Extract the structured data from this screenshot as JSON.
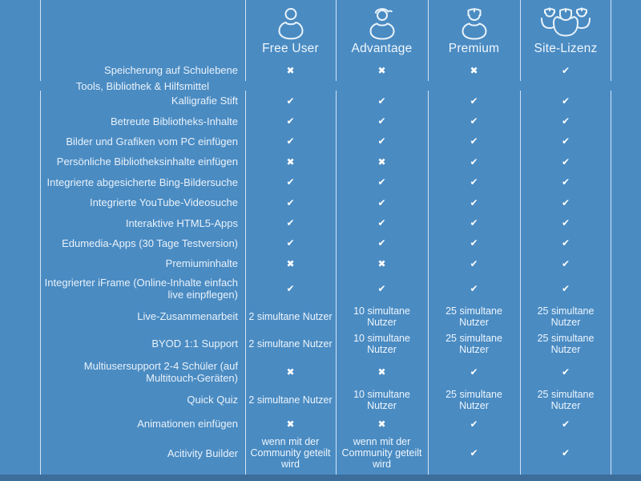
{
  "colors": {
    "background": "#4a8bc2",
    "footer_strip": "#3c6d9b",
    "divider_line": "#f0f8ff",
    "text": "#e9f2fa"
  },
  "glyphs": {
    "yes": "✔",
    "no": "✖"
  },
  "header": {
    "plans": [
      {
        "label": "Free User",
        "icon": "free-user-icon"
      },
      {
        "label": "Advantage",
        "icon": "advantage-user-icon"
      },
      {
        "label": "Premium",
        "icon": "premium-user-icon"
      },
      {
        "label": "Site-Lizenz",
        "icon": "site-license-group-icon"
      }
    ]
  },
  "rows": [
    {
      "type": "feature",
      "placement": "header",
      "label": "Speicherung auf Schulebene",
      "values": [
        "no",
        "no",
        "no",
        "yes"
      ]
    },
    {
      "type": "section-title",
      "label": "Tools, Bibliothek & Hilfsmittel"
    },
    {
      "type": "feature",
      "label": "Kalligrafie Stift",
      "values": [
        "yes",
        "yes",
        "yes",
        "yes"
      ]
    },
    {
      "type": "feature",
      "label": "Betreute Bibliotheks-Inhalte",
      "values": [
        "yes",
        "yes",
        "yes",
        "yes"
      ]
    },
    {
      "type": "feature",
      "label": "Bilder und Grafiken vom PC einfügen",
      "values": [
        "yes",
        "yes",
        "yes",
        "yes"
      ]
    },
    {
      "type": "feature",
      "label": "Persönliche Bibliotheksinhalte einfügen",
      "values": [
        "no",
        "no",
        "yes",
        "yes"
      ]
    },
    {
      "type": "feature",
      "label": "Integrierte abgesicherte Bing-Bildersuche",
      "values": [
        "yes",
        "yes",
        "yes",
        "yes"
      ]
    },
    {
      "type": "feature",
      "label": "Integrierte YouTube-Videosuche",
      "values": [
        "yes",
        "yes",
        "yes",
        "yes"
      ]
    },
    {
      "type": "feature",
      "label": "Interaktive HTML5-Apps",
      "values": [
        "yes",
        "yes",
        "yes",
        "yes"
      ]
    },
    {
      "type": "feature",
      "label": "Edumedia-Apps (30 Tage Testversion)",
      "values": [
        "yes",
        "yes",
        "yes",
        "yes"
      ]
    },
    {
      "type": "feature",
      "label": "Premiuminhalte",
      "values": [
        "no",
        "no",
        "yes",
        "yes"
      ]
    },
    {
      "type": "feature",
      "label": "Integrierter iFrame (Online-Inhalte einfach live einpflegen)",
      "values": [
        "yes",
        "yes",
        "yes",
        "yes"
      ]
    },
    {
      "type": "feature",
      "label": "Live-Zusammenarbeit",
      "values": [
        "2 simultane Nutzer",
        "10 simultane Nutzer",
        "25 simultane Nutzer",
        "25 simultane Nutzer"
      ]
    },
    {
      "type": "feature",
      "label": "BYOD 1:1 Support",
      "values": [
        "2 simultane Nutzer",
        "10 simultane Nutzer",
        "25 simultane Nutzer",
        "25 simultane Nutzer"
      ]
    },
    {
      "type": "feature",
      "label": "Multiusersupport 2-4 Schüler (auf Multitouch-Geräten)",
      "values": [
        "no",
        "no",
        "yes",
        "yes"
      ]
    },
    {
      "type": "feature",
      "label": "Quick Quiz",
      "values": [
        "2 simultane Nutzer",
        "10 simultane Nutzer",
        "25 simultane Nutzer",
        "25 simultane Nutzer"
      ]
    },
    {
      "type": "feature",
      "label": "Animationen einfügen",
      "values": [
        "no",
        "no",
        "yes",
        "yes"
      ]
    },
    {
      "type": "feature",
      "label": "Acitivity Builder",
      "values": [
        "wenn mit der Community geteilt wird",
        "wenn mit der Community geteilt wird",
        "yes",
        "yes"
      ]
    }
  ]
}
